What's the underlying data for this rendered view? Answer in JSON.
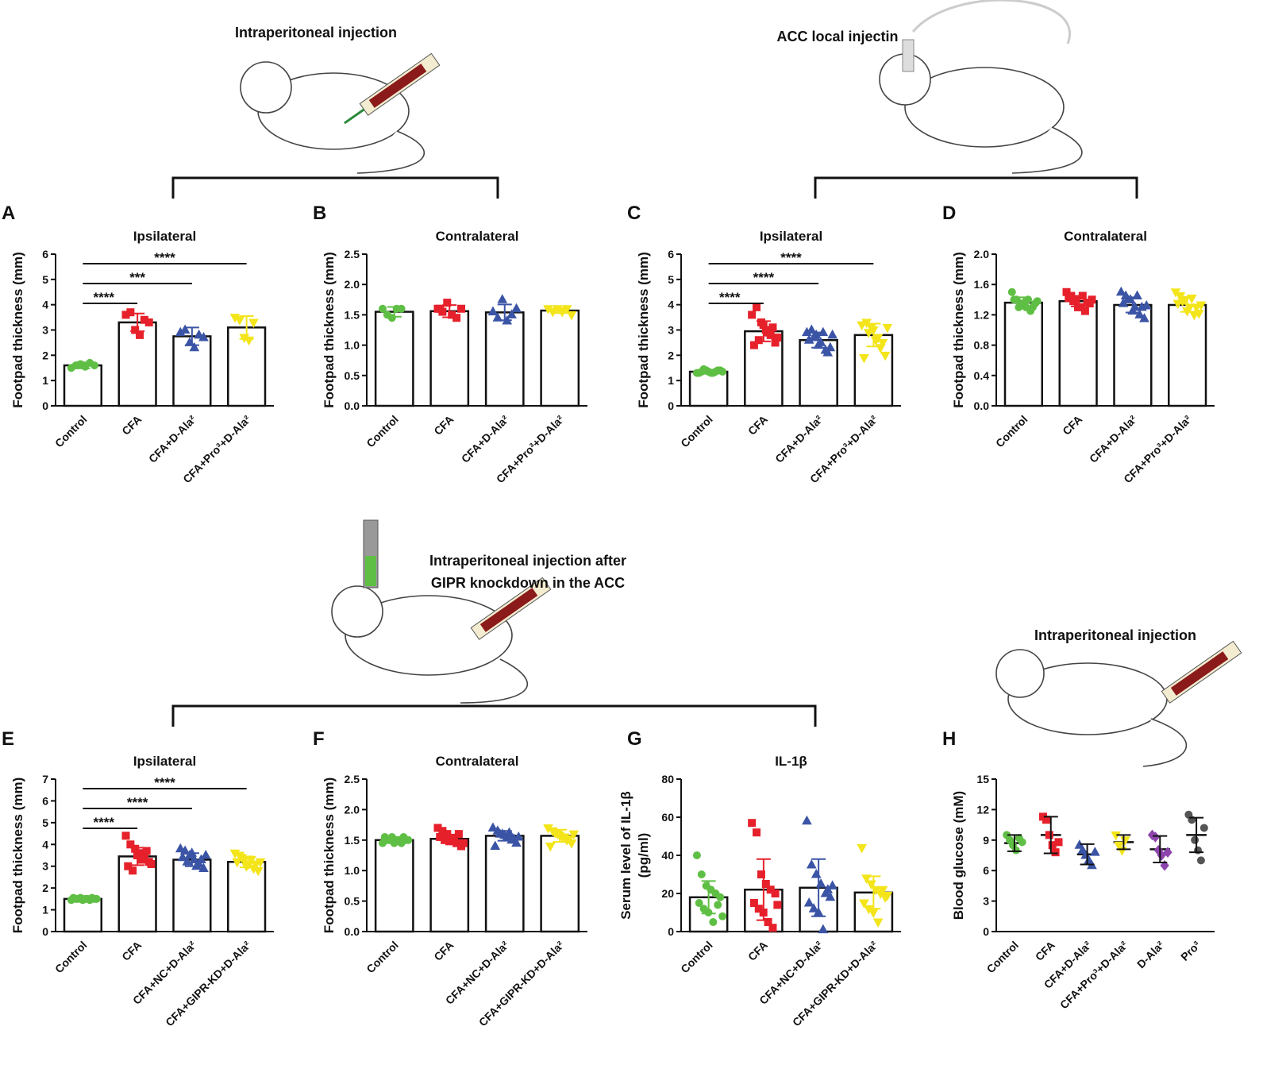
{
  "captions": [
    "Intraperitoneal injection",
    "ACC local injectin",
    "Intraperitoneal injection after",
    "GIPR knockdown in the ACC",
    "Intraperitoneal injection"
  ],
  "chart_data": [
    {
      "type": "bar",
      "label": "A",
      "title": "Ipsilateral",
      "ylabel": [
        "Footpad thickness (mm)"
      ],
      "categories": [
        "Control",
        "CFA",
        "CFA+D-Ala²",
        "CFA+Pro³+D-Ala²"
      ],
      "colors": [
        "#5fbf45",
        "#e6212b",
        "#3b54a5",
        "#f3e51a"
      ],
      "markers": [
        "circle",
        "square",
        "triangle",
        "down"
      ],
      "values": [
        1.6,
        3.3,
        2.75,
        3.1
      ],
      "errors": [
        0.12,
        0.35,
        0.35,
        0.45
      ],
      "points": [
        [
          1.5,
          1.6,
          1.65,
          1.55,
          1.7,
          1.6
        ],
        [
          3.6,
          3.7,
          3.0,
          2.8,
          3.4,
          3.3
        ],
        [
          2.9,
          3.0,
          2.5,
          2.3,
          2.8,
          2.7
        ],
        [
          3.5,
          3.4,
          2.7,
          2.6,
          3.3
        ]
      ],
      "ylim": [
        0,
        6
      ],
      "yticks": [
        0,
        1,
        2,
        3,
        4,
        5,
        6
      ],
      "significance": [
        {
          "groups": [
            0,
            1
          ],
          "label": "****"
        },
        {
          "groups": [
            0,
            2
          ],
          "label": "***"
        },
        {
          "groups": [
            0,
            3
          ],
          "label": "****"
        }
      ]
    },
    {
      "type": "bar",
      "label": "B",
      "title": "Contralateral",
      "ylabel": [
        "Footpad thickness (mm)"
      ],
      "categories": [
        "Control",
        "CFA",
        "CFA+D-Ala²",
        "CFA+Pro³+D-Ala²"
      ],
      "colors": [
        "#5fbf45",
        "#e6212b",
        "#3b54a5",
        "#f3e51a"
      ],
      "markers": [
        "circle",
        "square",
        "triangle",
        "down"
      ],
      "values": [
        1.55,
        1.56,
        1.54,
        1.57
      ],
      "errors": [
        0.08,
        0.1,
        0.13,
        0.04
      ],
      "points": [
        [
          1.6,
          1.5,
          1.45,
          1.6,
          1.6
        ],
        [
          1.6,
          1.55,
          1.7,
          1.5,
          1.45,
          1.6,
          1.6
        ],
        [
          1.55,
          1.45,
          1.75,
          1.4,
          1.5,
          1.6
        ],
        [
          1.6,
          1.55,
          1.6,
          1.55,
          1.6,
          1.5
        ]
      ],
      "ylim": [
        0,
        2.5
      ],
      "yticks": [
        {
          "value": 0,
          "label": "0.0"
        },
        0.5,
        {
          "value": 1,
          "label": "1.0"
        },
        1.5,
        {
          "value": 2,
          "label": "2.0"
        },
        2.5
      ],
      "significance": []
    },
    {
      "type": "bar",
      "label": "C",
      "title": "Ipsilateral",
      "ylabel": [
        "Footpad thickness (mm)"
      ],
      "categories": [
        "Control",
        "CFA",
        "CFA+D-Ala²",
        "CFA+Pro³+D-Ala²"
      ],
      "colors": [
        "#5fbf45",
        "#e6212b",
        "#3b54a5",
        "#f3e51a"
      ],
      "markers": [
        "circle",
        "square",
        "triangle",
        "down"
      ],
      "values": [
        1.35,
        2.95,
        2.6,
        2.8
      ],
      "errors": [
        0.08,
        0.4,
        0.3,
        0.45
      ],
      "points": [
        [
          1.3,
          1.35,
          1.4,
          1.3,
          1.35,
          1.4,
          1.3,
          1.45,
          1.35,
          1.3,
          1.4,
          1.35
        ],
        [
          3.6,
          3.9,
          3.3,
          3.0,
          2.8,
          2.5,
          2.4,
          2.6,
          3.2,
          2.9,
          3.1,
          2.7
        ],
        [
          2.9,
          3.0,
          2.8,
          2.5,
          2.2,
          2.3,
          2.6,
          2.7,
          2.4,
          2.9,
          2.1,
          2.8
        ],
        [
          3.2,
          3.3,
          3.1,
          2.6,
          2.3,
          2.0,
          1.9,
          2.9,
          3.0,
          2.7,
          2.5,
          3.1
        ]
      ],
      "ylim": [
        0,
        6
      ],
      "yticks": [
        0,
        1,
        2,
        3,
        4,
        5,
        6
      ],
      "significance": [
        {
          "groups": [
            0,
            1
          ],
          "label": "****"
        },
        {
          "groups": [
            0,
            2
          ],
          "label": "****"
        },
        {
          "groups": [
            0,
            3
          ],
          "label": "****"
        }
      ]
    },
    {
      "type": "bar",
      "label": "D",
      "title": "Contralateral",
      "ylabel": [
        "Footpad thickness (mm)"
      ],
      "categories": [
        "Control",
        "CFA",
        "CFA+D-Ala²",
        "CFA+Pro³+D-Ala²"
      ],
      "colors": [
        "#5fbf45",
        "#e6212b",
        "#3b54a5",
        "#f3e51a"
      ],
      "markers": [
        "circle",
        "square",
        "triangle",
        "down"
      ],
      "values": [
        1.36,
        1.38,
        1.33,
        1.33
      ],
      "errors": [
        0.07,
        0.07,
        0.1,
        0.09
      ],
      "points": [
        [
          1.5,
          1.4,
          1.35,
          1.3,
          1.25,
          1.35,
          1.4,
          1.3,
          1.35,
          1.4,
          1.3,
          1.38
        ],
        [
          1.5,
          1.45,
          1.4,
          1.3,
          1.25,
          1.35,
          1.42,
          1.38,
          1.3,
          1.45,
          1.36,
          1.4
        ],
        [
          1.5,
          1.45,
          1.4,
          1.3,
          1.2,
          1.15,
          1.35,
          1.4,
          1.25,
          1.45,
          1.3,
          1.32
        ],
        [
          1.5,
          1.45,
          1.4,
          1.3,
          1.2,
          1.22,
          1.35,
          1.38,
          1.25,
          1.42,
          1.3,
          1.33
        ]
      ],
      "ylim": [
        0,
        2
      ],
      "yticks": [
        {
          "value": 0,
          "label": "0.0"
        },
        0.4,
        0.8,
        1.2,
        1.6,
        {
          "value": 2,
          "label": "2.0"
        }
      ],
      "significance": []
    },
    {
      "type": "bar",
      "label": "E",
      "title": "Ipsilateral",
      "ylabel": [
        "Footpad thickness (mm)"
      ],
      "categories": [
        "Control",
        "CFA",
        "CFA+NC+D-Ala²",
        "CFA+GIPR-KD+D-Ala²"
      ],
      "colors": [
        "#5fbf45",
        "#e6212b",
        "#3b54a5",
        "#f3e51a"
      ],
      "markers": [
        "circle",
        "square",
        "triangle",
        "down"
      ],
      "values": [
        1.5,
        3.45,
        3.3,
        3.2
      ],
      "errors": [
        0.05,
        0.4,
        0.3,
        0.25
      ],
      "points": [
        [
          1.45,
          1.5,
          1.55,
          1.5,
          1.45,
          1.5,
          1.55,
          1.5,
          1.45,
          1.5,
          1.55,
          1.5
        ],
        [
          4.4,
          4.0,
          3.8,
          3.6,
          3.4,
          3.2,
          3.0,
          2.8,
          3.5,
          3.3,
          3.7,
          3.1
        ],
        [
          3.8,
          3.7,
          3.5,
          3.3,
          3.1,
          2.9,
          3.4,
          3.2,
          3.6,
          3.0,
          3.3,
          3.5
        ],
        [
          3.6,
          3.5,
          3.3,
          3.1,
          2.9,
          2.8,
          3.2,
          3.4,
          3.0,
          3.3,
          3.1,
          3.2
        ]
      ],
      "ylim": [
        0,
        7
      ],
      "yticks": [
        0,
        1,
        2,
        3,
        4,
        5,
        6,
        7
      ],
      "significance": [
        {
          "groups": [
            0,
            1
          ],
          "label": "****"
        },
        {
          "groups": [
            0,
            2
          ],
          "label": "****"
        },
        {
          "groups": [
            0,
            3
          ],
          "label": "****"
        }
      ]
    },
    {
      "type": "bar",
      "label": "F",
      "title": "Contralateral",
      "ylabel": [
        "Footpad thickness (mm)"
      ],
      "categories": [
        "Control",
        "CFA",
        "CFA+NC+D-Ala²",
        "CFA+GIPR-KD+D-Ala²"
      ],
      "colors": [
        "#5fbf45",
        "#e6212b",
        "#3b54a5",
        "#f3e51a"
      ],
      "markers": [
        "circle",
        "square",
        "triangle",
        "down"
      ],
      "values": [
        1.5,
        1.52,
        1.57,
        1.57
      ],
      "errors": [
        0.05,
        0.07,
        0.08,
        0.1
      ],
      "points": [
        [
          1.45,
          1.5,
          1.55,
          1.5,
          1.45,
          1.5,
          1.55,
          1.5,
          1.45,
          1.5,
          1.55,
          1.5
        ],
        [
          1.7,
          1.65,
          1.6,
          1.5,
          1.45,
          1.4,
          1.55,
          1.5,
          1.48,
          1.52,
          1.6,
          1.45
        ],
        [
          1.7,
          1.65,
          1.6,
          1.55,
          1.5,
          1.45,
          1.4,
          1.6,
          1.58,
          1.62,
          1.52,
          1.55
        ],
        [
          1.7,
          1.65,
          1.6,
          1.55,
          1.5,
          1.45,
          1.4,
          1.62,
          1.58,
          1.55,
          1.52,
          1.6
        ]
      ],
      "ylim": [
        0,
        2.5
      ],
      "yticks": [
        {
          "value": 0,
          "label": "0.0"
        },
        0.5,
        {
          "value": 1,
          "label": "1.0"
        },
        1.5,
        {
          "value": 2,
          "label": "2.0"
        },
        2.5
      ],
      "significance": []
    },
    {
      "type": "bar",
      "label": "G",
      "title": "IL-1β",
      "ylabel": [
        "Serum level of IL-1β",
        "(pg/ml)"
      ],
      "categories": [
        "Control",
        "CFA",
        "CFA+NC+D-Ala²",
        "CFA+GIPR-KD+D-Ala²"
      ],
      "colors": [
        "#5fbf45",
        "#e6212b",
        "#3b54a5",
        "#f3e51a"
      ],
      "markers": [
        "circle",
        "square",
        "triangle",
        "down"
      ],
      "values": [
        18,
        22,
        23,
        20.5
      ],
      "errors": [
        8.5,
        16,
        15,
        8.5
      ],
      "points": [
        [
          40,
          30,
          24,
          22,
          20,
          18,
          15,
          12,
          10,
          5,
          14,
          8
        ],
        [
          57,
          52,
          30,
          25,
          22,
          20,
          15,
          12,
          10,
          5,
          2,
          14
        ],
        [
          58,
          35,
          30,
          25,
          20,
          18,
          15,
          12,
          10,
          1,
          22,
          24
        ],
        [
          44,
          28,
          25,
          22,
          20,
          18,
          15,
          12,
          10,
          5,
          22,
          19
        ]
      ],
      "ylim": [
        0,
        80
      ],
      "yticks": [
        0,
        20,
        40,
        60,
        80
      ],
      "significance": []
    },
    {
      "type": "dot",
      "label": "H",
      "title": "",
      "ylabel": [
        "Blood glucose (mM)"
      ],
      "categories": [
        "Control",
        "CFA",
        "CFA+D-Ala²",
        "CFA+Pro³+D-Ala²",
        "D-Ala²",
        "Pro³"
      ],
      "colors": [
        "#5fbf45",
        "#e6212b",
        "#3b54a5",
        "#f3e51a",
        "#8e44ad",
        "#555555"
      ],
      "markers": [
        "circle",
        "square",
        "triangle",
        "down",
        "diamond",
        "circle"
      ],
      "values": [
        8.7,
        9.5,
        7.6,
        8.8,
        8.1,
        9.5
      ],
      "errors": [
        0.8,
        1.8,
        1.0,
        0.7,
        1.3,
        1.7
      ],
      "points": [
        [
          9.5,
          9.0,
          8.5,
          8.0,
          9.2,
          8.8
        ],
        [
          11.3,
          11.0,
          9.5,
          8.5,
          7.8,
          8.8
        ],
        [
          8.5,
          8.0,
          7.5,
          7.0,
          6.5,
          7.8
        ],
        [
          9.5,
          8.5,
          8.0,
          9.0
        ],
        [
          9.5,
          9.3,
          8.0,
          7.5,
          6.5,
          7.8
        ],
        [
          11.5,
          11.0,
          9.0,
          8.0,
          7.0,
          10.2
        ]
      ],
      "ylim": [
        0,
        15
      ],
      "yticks": [
        0,
        3,
        6,
        9,
        12,
        15
      ],
      "significance": []
    }
  ]
}
